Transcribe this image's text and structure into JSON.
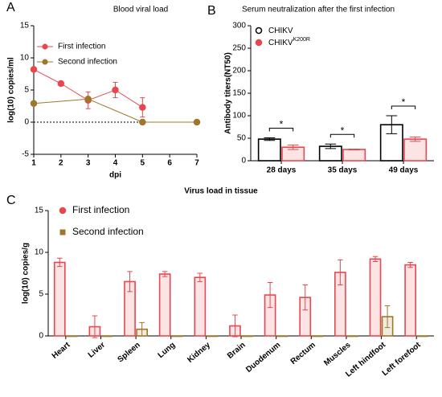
{
  "chart_data": [
    {
      "type": "line",
      "letter": "A",
      "title": "Blood viral load",
      "x_label": "dpi",
      "y_label": "log(10) copies/ml",
      "xlim": [
        1,
        7
      ],
      "xticks": [
        1,
        2,
        3,
        4,
        5,
        6,
        7
      ],
      "ylim": [
        -5,
        15
      ],
      "yticks": [
        -5,
        0,
        5,
        10,
        15
      ],
      "legend": "upper left",
      "series": [
        {
          "name": "First infection",
          "color": "#e8474f",
          "marker": "circle",
          "x": [
            1,
            2,
            3,
            4,
            5
          ],
          "values": [
            8.2,
            6.0,
            3.4,
            5.0,
            2.3
          ],
          "errors": [
            0.3,
            0.3,
            1.3,
            1.2,
            1.5
          ]
        },
        {
          "name": "Second infection",
          "color": "#a0762a",
          "marker": "circle",
          "x": [
            1,
            3,
            5,
            7
          ],
          "values": [
            2.9,
            3.6,
            0,
            0
          ],
          "errors": [
            0,
            0,
            0,
            0
          ]
        }
      ]
    },
    {
      "type": "bar",
      "letter": "B",
      "title": "Serum neutralization after the first infection",
      "y_label": "Antibody titers(NT50)",
      "categories": [
        "28 days",
        "35 days",
        "49 days"
      ],
      "ylim": [
        0,
        300
      ],
      "yticks": [
        0,
        50,
        100,
        150,
        200,
        250,
        300
      ],
      "legend": "upper left",
      "annotations": [
        "*",
        "*",
        "*"
      ],
      "series": [
        {
          "name": "CHIKV",
          "color": "#000000",
          "marker": "circle",
          "values": [
            48,
            32,
            80
          ],
          "errors": [
            3,
            5,
            20
          ]
        },
        {
          "name": "CHIKV",
          "superscript": "K200R",
          "color": "#e8474f",
          "marker": "circle",
          "values": [
            30,
            25,
            48
          ],
          "errors": [
            5,
            1,
            5
          ]
        }
      ]
    },
    {
      "type": "bar",
      "letter": "C",
      "title": "Virus load in tissue",
      "y_label": "log(10) copies/g",
      "categories": [
        "Heart",
        "Liver",
        "Spleen",
        "Lung",
        "Kidney",
        "Brain",
        "Duodenum",
        "Rectum",
        "Muscles",
        "Left hindfoot",
        "Left forefoot"
      ],
      "ylim": [
        0,
        15
      ],
      "yticks": [
        0,
        5,
        10,
        15
      ],
      "legend": "upper left",
      "series": [
        {
          "name": "First infection",
          "color": "#e8474f",
          "marker": "circle",
          "values": [
            8.8,
            1.1,
            6.5,
            7.4,
            7.0,
            1.2,
            4.9,
            4.6,
            7.6,
            9.2,
            8.5
          ],
          "errors": [
            0.5,
            1.3,
            1.2,
            0.3,
            0.5,
            1.3,
            1.5,
            1.5,
            1.5,
            0.3,
            0.3
          ]
        },
        {
          "name": "Second infection",
          "color": "#a0762a",
          "marker": "square",
          "values": [
            0,
            0,
            0.8,
            0,
            0,
            0,
            0,
            0,
            0,
            2.3,
            0
          ],
          "errors": [
            0,
            0,
            0.8,
            0,
            0,
            0,
            0,
            0,
            0,
            1.3,
            0
          ]
        }
      ]
    }
  ]
}
